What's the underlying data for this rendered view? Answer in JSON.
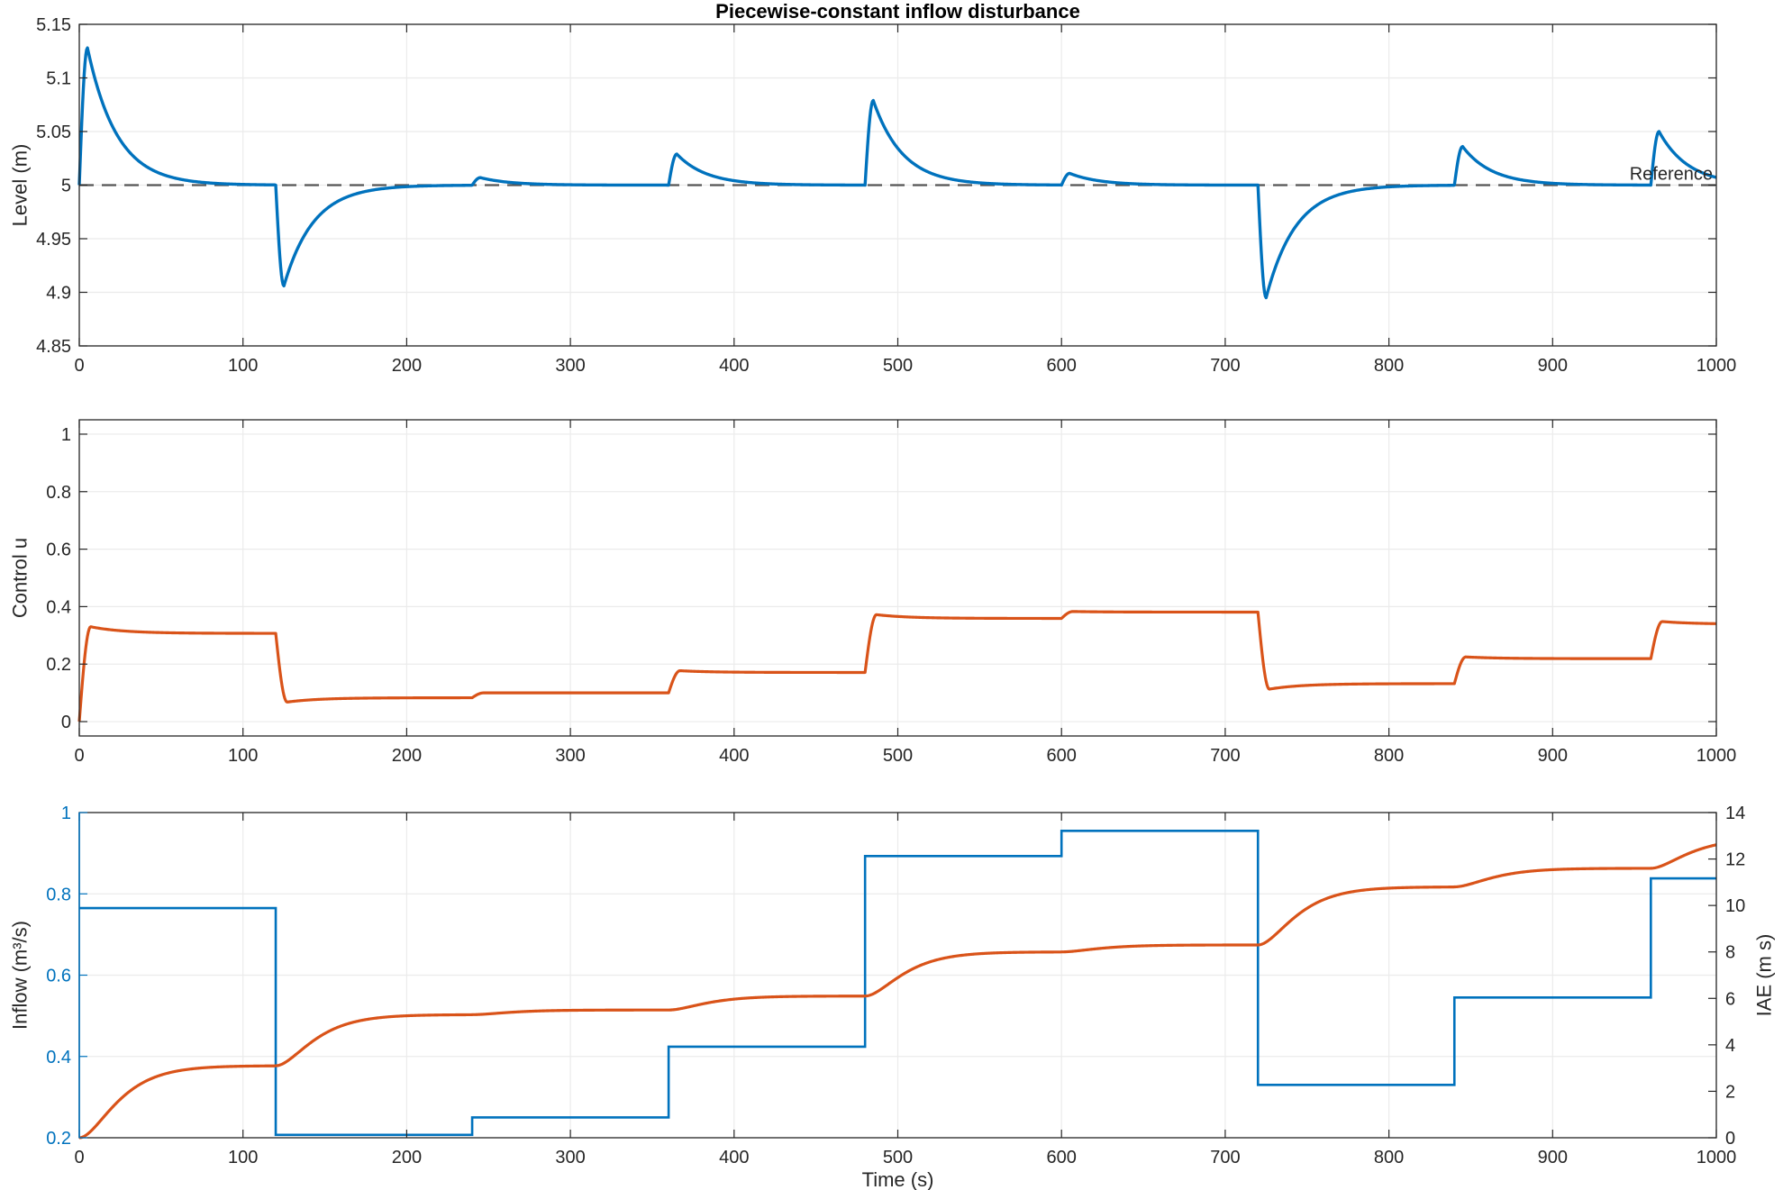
{
  "colors": {
    "level": "#0072BD",
    "control": "#D95319",
    "inflow": "#0072BD",
    "iae": "#D95319",
    "reference": "#555555",
    "grid": "#ebebeb",
    "axis": "#262626"
  },
  "chart_data": [
    {
      "type": "line",
      "title": "Piecewise-constant inflow disturbance",
      "xlabel": "",
      "ylabel": "Level (m)",
      "xlim": [
        0,
        1000
      ],
      "ylim": [
        4.85,
        5.15
      ],
      "xticks": [
        "0",
        "100",
        "200",
        "300",
        "400",
        "500",
        "600",
        "700",
        "800",
        "900",
        "1000"
      ],
      "yticks": [
        "4.85",
        "4.9",
        "4.95",
        "5",
        "5.05",
        "5.1",
        "5.15"
      ],
      "grid": true,
      "annotations": [
        "Reference"
      ],
      "reference_level": 5.0,
      "series": [
        {
          "step_times": [
            0,
            120,
            240,
            360,
            480,
            600,
            720,
            840,
            960
          ],
          "step_peaks": [
            5.128,
            4.906,
            5.007,
            5.029,
            5.079,
            5.011,
            4.895,
            5.036,
            5.05
          ],
          "peak_delay_s": 5,
          "decay_tau_s": 18,
          "start_value": 5.0
        }
      ]
    },
    {
      "type": "line",
      "title": "",
      "xlabel": "",
      "ylabel": "Control u",
      "xlim": [
        0,
        1000
      ],
      "ylim": [
        -0.05,
        1.05
      ],
      "xticks": [
        "0",
        "100",
        "200",
        "300",
        "400",
        "500",
        "600",
        "700",
        "800",
        "900",
        "1000"
      ],
      "yticks": [
        "0",
        "0.2",
        "0.4",
        "0.6",
        "0.8",
        "1"
      ],
      "grid": true,
      "series": [
        {
          "step_times": [
            0,
            120,
            240,
            360,
            480,
            600,
            720,
            840,
            960
          ],
          "step_peaks": [
            0.33,
            0.068,
            0.1,
            0.177,
            0.372,
            0.383,
            0.113,
            0.225,
            0.348
          ],
          "settled_values": [
            0.307,
            0.083,
            0.1,
            0.171,
            0.359,
            0.381,
            0.132,
            0.219,
            0.339
          ],
          "start_value": 0.0
        }
      ]
    },
    {
      "type": "line",
      "title": "",
      "xlabel": "Time (s)",
      "ylabel": "Inflow (m³/s)",
      "y2label": "IAE (m s)",
      "xlim": [
        0,
        1000
      ],
      "ylim": [
        0.2,
        1.0
      ],
      "y2lim": [
        0,
        14
      ],
      "xticks": [
        "0",
        "100",
        "200",
        "300",
        "400",
        "500",
        "600",
        "700",
        "800",
        "900",
        "1000"
      ],
      "yticks": [
        "0.2",
        "0.4",
        "0.6",
        "0.8",
        "1"
      ],
      "y2ticks": [
        "0",
        "2",
        "4",
        "6",
        "8",
        "10",
        "12",
        "14"
      ],
      "grid": true,
      "series": [
        {
          "axis": "left",
          "step_times": [
            0,
            120,
            240,
            360,
            480,
            600,
            720,
            840,
            960
          ],
          "values": [
            0.765,
            0.207,
            0.25,
            0.424,
            0.893,
            0.955,
            0.33,
            0.545,
            0.838
          ]
        },
        {
          "axis": "right",
          "step_times": [
            0,
            120,
            240,
            360,
            480,
            600,
            720,
            840,
            960
          ],
          "plateau_values": [
            3.1,
            5.3,
            5.5,
            6.1,
            8.0,
            8.3,
            10.8,
            11.6,
            12.9
          ],
          "start_value": 0.0
        }
      ]
    }
  ]
}
